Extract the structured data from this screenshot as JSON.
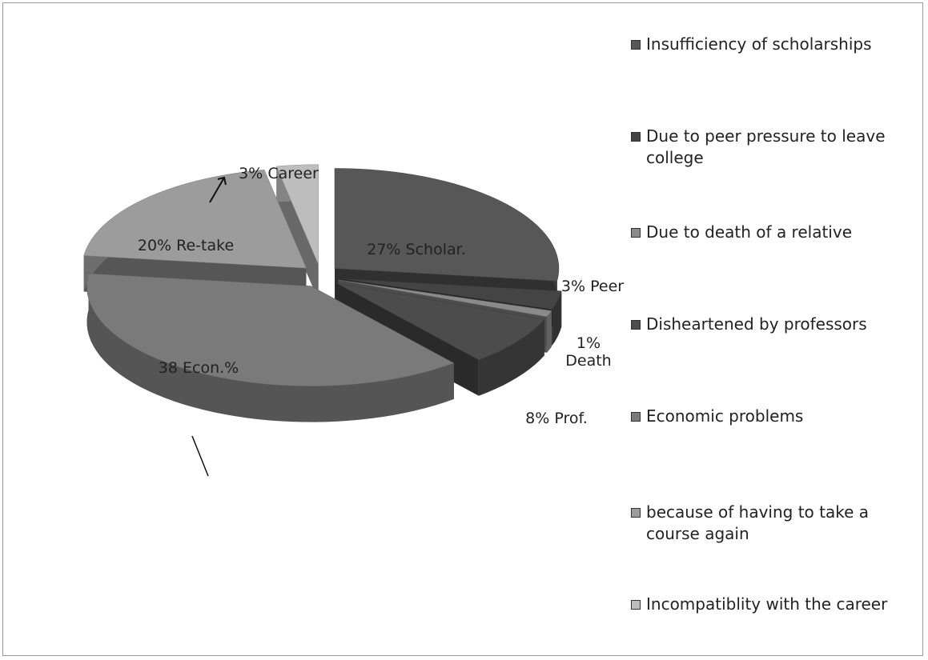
{
  "chart_data": {
    "type": "pie",
    "categories": [
      "Insufficiency of scholarships",
      "Due to peer pressure to leave college",
      "Due to death of a relative",
      "Disheartened by professors",
      "Economic problems",
      "because of having to take a course again",
      "Incompatiblity with the career"
    ],
    "values": [
      27,
      3,
      1,
      8,
      38,
      20,
      3
    ],
    "value_labels": [
      "27% Scholar.",
      "3% Peer",
      "1% Death",
      "8% Prof.",
      "38 Econ.%",
      "20% Re-take",
      "3% Career"
    ],
    "colors": [
      "#575757",
      "#444444",
      "#8a8a8a",
      "#4c4c4c",
      "#7a7a7a",
      "#9c9c9c",
      "#bdbdbd"
    ],
    "legend": "right"
  }
}
